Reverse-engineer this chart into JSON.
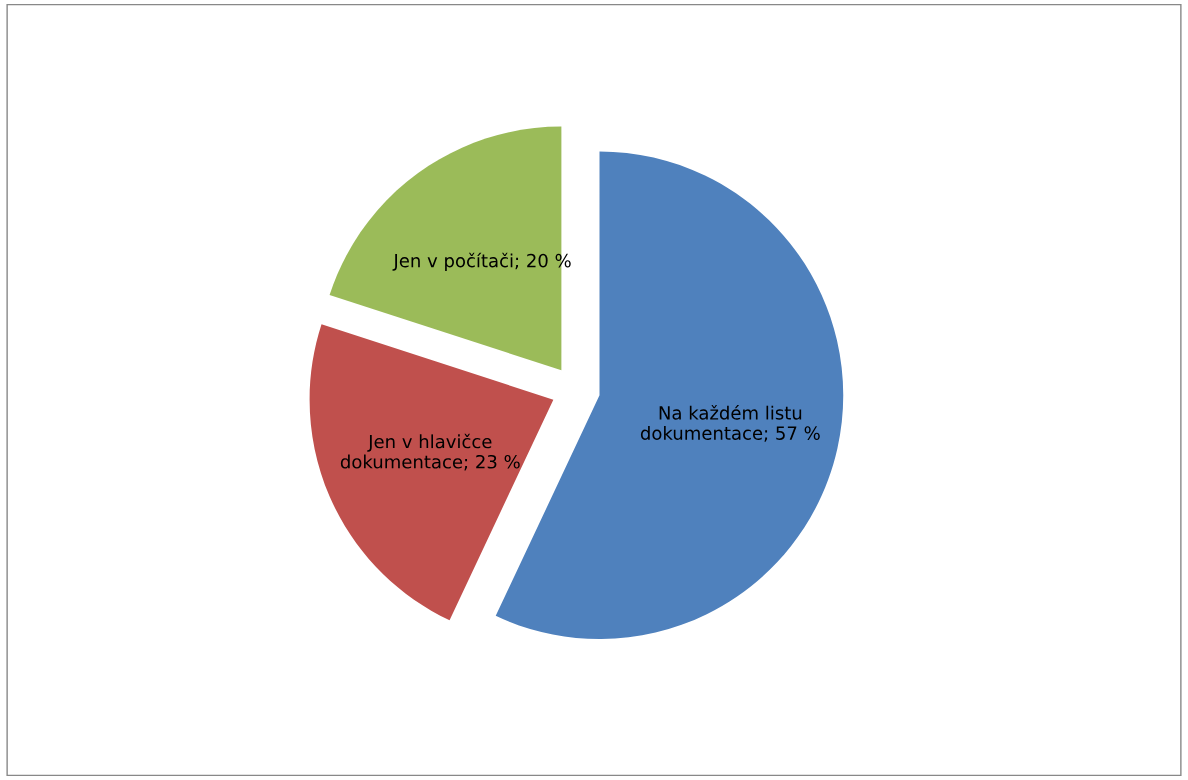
{
  "chart_data": {
    "type": "pie",
    "categories": [
      "Na každém listu dokumentace",
      "Jen v hlavičce dokumentace",
      "Jen v počítači"
    ],
    "values": [
      57,
      23,
      20
    ],
    "colors": [
      "#4f81bd",
      "#c0504d",
      "#9bbb59"
    ],
    "value_labels": [
      "57 %",
      "23 %",
      "20 %"
    ],
    "legend": false
  }
}
